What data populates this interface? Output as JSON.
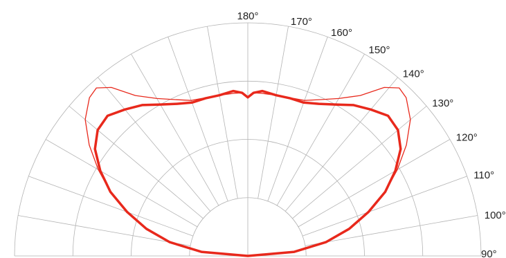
{
  "chart_data": {
    "type": "polar",
    "title": "",
    "angle_range_deg": [
      90,
      180
    ],
    "angle_labels": [
      "180°",
      "170°",
      "160°",
      "150°",
      "140°",
      "130°",
      "120°",
      "110°",
      "100°",
      "90°"
    ],
    "angle_ticks_deg": [
      180,
      170,
      160,
      150,
      140,
      130,
      120,
      110,
      100,
      90
    ],
    "radial_rings": 4,
    "grid": true,
    "series": [
      {
        "color": "#e8291c",
        "style": "thick",
        "points": [
          {
            "angle": 90,
            "r": 0.0
          },
          {
            "angle": 95,
            "r": 0.2
          },
          {
            "angle": 100,
            "r": 0.34
          },
          {
            "angle": 105,
            "r": 0.45
          },
          {
            "angle": 110,
            "r": 0.55
          },
          {
            "angle": 115,
            "r": 0.65
          },
          {
            "angle": 120,
            "r": 0.73
          },
          {
            "angle": 125,
            "r": 0.8
          },
          {
            "angle": 130,
            "r": 0.84
          },
          {
            "angle": 135,
            "r": 0.85
          },
          {
            "angle": 140,
            "r": 0.82
          },
          {
            "angle": 145,
            "r": 0.79
          },
          {
            "angle": 150,
            "r": 0.75
          },
          {
            "angle": 155,
            "r": 0.72
          },
          {
            "angle": 160,
            "r": 0.7
          },
          {
            "angle": 165,
            "r": 0.7
          },
          {
            "angle": 170,
            "r": 0.7
          },
          {
            "angle": 175,
            "r": 0.71
          },
          {
            "angle": 178,
            "r": 0.7
          },
          {
            "angle": 180,
            "r": 0.68
          }
        ]
      },
      {
        "color": "#e8291c",
        "style": "thin",
        "points": [
          {
            "angle": 90,
            "r": 0.0
          },
          {
            "angle": 95,
            "r": 0.2
          },
          {
            "angle": 100,
            "r": 0.34
          },
          {
            "angle": 105,
            "r": 0.45
          },
          {
            "angle": 110,
            "r": 0.55
          },
          {
            "angle": 115,
            "r": 0.65
          },
          {
            "angle": 120,
            "r": 0.74
          },
          {
            "angle": 125,
            "r": 0.83
          },
          {
            "angle": 130,
            "r": 0.91
          },
          {
            "angle": 135,
            "r": 0.96
          },
          {
            "angle": 138,
            "r": 0.97
          },
          {
            "angle": 141,
            "r": 0.93
          },
          {
            "angle": 145,
            "r": 0.84
          },
          {
            "angle": 150,
            "r": 0.78
          },
          {
            "angle": 155,
            "r": 0.74
          },
          {
            "angle": 160,
            "r": 0.71
          },
          {
            "angle": 170,
            "r": 0.7
          },
          {
            "angle": 175,
            "r": 0.7
          },
          {
            "angle": 178,
            "r": 0.7
          },
          {
            "angle": 180,
            "r": 0.68
          }
        ]
      }
    ]
  }
}
